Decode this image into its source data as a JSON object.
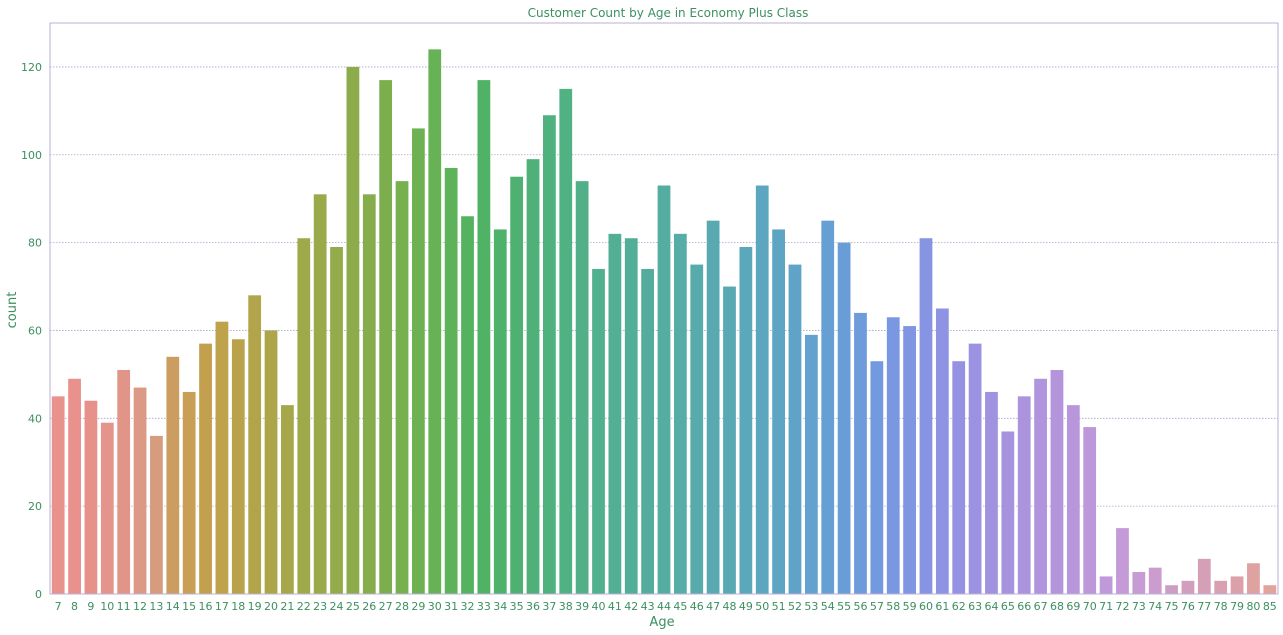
{
  "chart_data": {
    "type": "bar",
    "title": "Customer Count by Age in Economy Plus Class",
    "xlabel": "Age",
    "ylabel": "count",
    "ylim": [
      0,
      130
    ],
    "yticks": [
      0,
      20,
      40,
      60,
      80,
      100,
      120
    ],
    "grid": true,
    "categories": [
      "7",
      "8",
      "9",
      "10",
      "11",
      "12",
      "13",
      "14",
      "15",
      "16",
      "17",
      "18",
      "19",
      "20",
      "21",
      "22",
      "23",
      "24",
      "25",
      "26",
      "27",
      "28",
      "29",
      "30",
      "31",
      "32",
      "33",
      "34",
      "35",
      "36",
      "37",
      "38",
      "39",
      "40",
      "41",
      "42",
      "43",
      "44",
      "45",
      "46",
      "47",
      "48",
      "49",
      "50",
      "51",
      "52",
      "53",
      "54",
      "55",
      "56",
      "57",
      "58",
      "59",
      "60",
      "61",
      "62",
      "63",
      "64",
      "65",
      "66",
      "67",
      "68",
      "69",
      "70",
      "71",
      "72",
      "73",
      "74",
      "75",
      "76",
      "77",
      "78",
      "79",
      "80",
      "85"
    ],
    "values": [
      45,
      49,
      44,
      39,
      51,
      47,
      36,
      54,
      46,
      57,
      62,
      58,
      68,
      60,
      43,
      81,
      91,
      79,
      120,
      91,
      117,
      94,
      106,
      124,
      97,
      86,
      117,
      83,
      95,
      99,
      109,
      115,
      94,
      74,
      82,
      81,
      74,
      93,
      82,
      75,
      85,
      70,
      79,
      93,
      83,
      75,
      59,
      85,
      80,
      64,
      53,
      63,
      61,
      81,
      65,
      53,
      57,
      46,
      37,
      45,
      49,
      51,
      43,
      38,
      4,
      15,
      5,
      6,
      2,
      3,
      8,
      3,
      4,
      7,
      2
    ],
    "colors": [
      "#e8918d",
      "#e8918d",
      "#e6928a",
      "#e4948a",
      "#e19588",
      "#dc9985",
      "#d79c7d",
      "#cc9d60",
      "#c99e56",
      "#c3a04e",
      "#bea24c",
      "#b9a24b",
      "#b2a44a",
      "#aca54a",
      "#a6a74a",
      "#a0a94a",
      "#9aaa4a",
      "#93ab4a",
      "#8cac4b",
      "#85ad4c",
      "#7dae4e",
      "#76b04f",
      "#6eb152",
      "#66b255",
      "#5eb25a",
      "#55b25f",
      "#50b264",
      "#4fb26b",
      "#4fb171",
      "#4fb177",
      "#4fb17d",
      "#50b183",
      "#51b088",
      "#51b08e",
      "#52af93",
      "#53ae98",
      "#54ad9c",
      "#55ada1",
      "#56aca6",
      "#57abab",
      "#58aab0",
      "#59a9b5",
      "#5aa8ba",
      "#5ca7bf",
      "#5ea5c4",
      "#60a3c9",
      "#63a1ce",
      "#669fd3",
      "#699dd7",
      "#6e9bdc",
      "#7399df",
      "#7998e1",
      "#8096e2",
      "#8794e3",
      "#8e93e3",
      "#9592e3",
      "#9b92e2",
      "#a192e0",
      "#a692df",
      "#ab93de",
      "#b094dd",
      "#b495dc",
      "#b896db",
      "#bc97da",
      "#c099da",
      "#c49ad8",
      "#c79bd3",
      "#cb9ccd",
      "#ce9dc6",
      "#d29ebe",
      "#d59fb7",
      "#d8a0b0",
      "#dba1a9",
      "#dea2a1",
      "#e2a49a"
    ]
  }
}
